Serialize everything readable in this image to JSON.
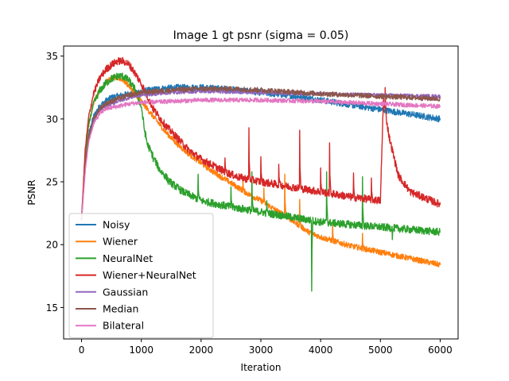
{
  "chart_data": {
    "type": "line",
    "title": "Image 1 gt psnr (sigma = 0.05)",
    "xlabel": "Iteration",
    "ylabel": "PSNR",
    "xlim": [
      -300,
      6300
    ],
    "ylim": [
      12.5,
      35.8
    ],
    "xticks": [
      0,
      1000,
      2000,
      3000,
      4000,
      5000,
      6000
    ],
    "yticks": [
      15,
      20,
      25,
      30,
      35
    ],
    "grid": false,
    "legend_position": "lower-left",
    "series": [
      {
        "name": "Noisy",
        "color": "#1f77b4",
        "points": [
          [
            0,
            22.0
          ],
          [
            60,
            26.5
          ],
          [
            120,
            28.8
          ],
          [
            200,
            30.2
          ],
          [
            300,
            31.0
          ],
          [
            400,
            31.4
          ],
          [
            500,
            31.7
          ],
          [
            700,
            31.9
          ],
          [
            1000,
            32.2
          ],
          [
            1300,
            32.4
          ],
          [
            1600,
            32.5
          ],
          [
            2000,
            32.5
          ],
          [
            2400,
            32.4
          ],
          [
            2800,
            32.2
          ],
          [
            3200,
            32.0
          ],
          [
            3600,
            31.8
          ],
          [
            4000,
            31.5
          ],
          [
            4400,
            31.2
          ],
          [
            4800,
            30.9
          ],
          [
            5200,
            30.6
          ],
          [
            5600,
            30.3
          ],
          [
            6000,
            30.0
          ]
        ],
        "noise": 0.25
      },
      {
        "name": "Wiener",
        "color": "#ff7f0e",
        "points": [
          [
            0,
            22.0
          ],
          [
            60,
            27.0
          ],
          [
            120,
            29.5
          ],
          [
            200,
            31.3
          ],
          [
            300,
            32.3
          ],
          [
            400,
            32.9
          ],
          [
            500,
            33.2
          ],
          [
            600,
            33.3
          ],
          [
            700,
            33.1
          ],
          [
            800,
            32.6
          ],
          [
            900,
            32.0
          ],
          [
            1000,
            31.4
          ],
          [
            1100,
            30.8
          ],
          [
            1200,
            30.2
          ],
          [
            1400,
            29.0
          ],
          [
            1600,
            28.0
          ],
          [
            1800,
            27.2
          ],
          [
            2000,
            26.5
          ],
          [
            2200,
            25.8
          ],
          [
            2400,
            25.2
          ],
          [
            2600,
            24.6
          ],
          [
            2800,
            24.0
          ],
          [
            3000,
            23.5
          ],
          [
            3200,
            22.9
          ],
          [
            3500,
            22.0
          ],
          [
            3800,
            21.0
          ],
          [
            4000,
            20.6
          ],
          [
            4500,
            19.9
          ],
          [
            5000,
            19.4
          ],
          [
            5500,
            18.9
          ],
          [
            6000,
            18.4
          ]
        ],
        "noise": 0.22,
        "spikes": [
          [
            2700,
            25.1
          ],
          [
            3050,
            24.5
          ],
          [
            3400,
            25.6
          ],
          [
            3650,
            23.6
          ],
          [
            4200,
            21.6
          ],
          [
            4700,
            20.9
          ]
        ]
      },
      {
        "name": "NeuralNet",
        "color": "#2ca02c",
        "points": [
          [
            0,
            22.0
          ],
          [
            60,
            27.0
          ],
          [
            120,
            29.6
          ],
          [
            200,
            31.2
          ],
          [
            300,
            32.2
          ],
          [
            400,
            32.8
          ],
          [
            500,
            33.2
          ],
          [
            600,
            33.4
          ],
          [
            700,
            33.4
          ],
          [
            800,
            33.0
          ],
          [
            900,
            32.3
          ],
          [
            1000,
            31.0
          ],
          [
            1050,
            29.2
          ],
          [
            1100,
            28.0
          ],
          [
            1200,
            27.0
          ],
          [
            1300,
            26.0
          ],
          [
            1500,
            24.9
          ],
          [
            1700,
            24.2
          ],
          [
            2000,
            23.5
          ],
          [
            2500,
            23.0
          ],
          [
            3000,
            22.6
          ],
          [
            3500,
            22.2
          ],
          [
            4000,
            21.8
          ],
          [
            4500,
            21.6
          ],
          [
            5000,
            21.4
          ],
          [
            5500,
            21.2
          ],
          [
            6000,
            21.0
          ]
        ],
        "noise": 0.3,
        "spikes": [
          [
            1200,
            26.6
          ],
          [
            1450,
            24.8
          ],
          [
            1950,
            25.6
          ],
          [
            2500,
            24.6
          ],
          [
            2850,
            25.8
          ],
          [
            3100,
            23.5
          ],
          [
            3850,
            16.3
          ],
          [
            4100,
            25.8
          ],
          [
            4700,
            25.4
          ],
          [
            5200,
            20.4
          ]
        ]
      },
      {
        "name": "Wiener+NeuralNet",
        "color": "#d62728",
        "points": [
          [
            0,
            22.0
          ],
          [
            60,
            27.5
          ],
          [
            120,
            30.2
          ],
          [
            200,
            32.0
          ],
          [
            300,
            33.2
          ],
          [
            400,
            33.9
          ],
          [
            500,
            34.3
          ],
          [
            600,
            34.6
          ],
          [
            700,
            34.6
          ],
          [
            800,
            34.3
          ],
          [
            900,
            33.6
          ],
          [
            1000,
            32.8
          ],
          [
            1100,
            31.8
          ],
          [
            1200,
            30.8
          ],
          [
            1400,
            29.5
          ],
          [
            1600,
            28.5
          ],
          [
            1800,
            27.5
          ],
          [
            2000,
            26.8
          ],
          [
            2200,
            26.3
          ],
          [
            2400,
            25.8
          ],
          [
            2600,
            25.4
          ],
          [
            2800,
            25.2
          ],
          [
            3000,
            25.0
          ],
          [
            3500,
            24.6
          ],
          [
            4000,
            24.2
          ],
          [
            4500,
            23.8
          ],
          [
            5000,
            23.5
          ],
          [
            5050,
            31.5
          ],
          [
            5150,
            28.5
          ],
          [
            5300,
            25.5
          ],
          [
            5500,
            24.2
          ],
          [
            6000,
            23.2
          ]
        ],
        "noise": 0.3,
        "spikes": [
          [
            2400,
            26.9
          ],
          [
            2800,
            29.3
          ],
          [
            3000,
            27.0
          ],
          [
            3300,
            26.4
          ],
          [
            3650,
            29.1
          ],
          [
            4000,
            26.1
          ],
          [
            4150,
            28.1
          ],
          [
            4550,
            25.7
          ],
          [
            4850,
            25.3
          ],
          [
            5080,
            32.5
          ]
        ]
      },
      {
        "name": "Gaussian",
        "color": "#9467bd",
        "points": [
          [
            0,
            22.0
          ],
          [
            60,
            26.0
          ],
          [
            120,
            28.4
          ],
          [
            200,
            29.8
          ],
          [
            300,
            30.6
          ],
          [
            400,
            31.0
          ],
          [
            600,
            31.4
          ],
          [
            800,
            31.7
          ],
          [
            1000,
            31.9
          ],
          [
            1500,
            32.1
          ],
          [
            2000,
            32.2
          ],
          [
            3000,
            32.1
          ],
          [
            4000,
            32.0
          ],
          [
            5000,
            31.9
          ],
          [
            6000,
            31.8
          ]
        ],
        "noise": 0.14
      },
      {
        "name": "Median",
        "color": "#8c564b",
        "points": [
          [
            0,
            22.0
          ],
          [
            60,
            26.2
          ],
          [
            120,
            28.6
          ],
          [
            200,
            30.0
          ],
          [
            300,
            30.8
          ],
          [
            400,
            31.2
          ],
          [
            600,
            31.6
          ],
          [
            800,
            31.9
          ],
          [
            1000,
            32.1
          ],
          [
            1500,
            32.3
          ],
          [
            2000,
            32.4
          ],
          [
            2500,
            32.4
          ],
          [
            3000,
            32.3
          ],
          [
            4000,
            32.0
          ],
          [
            5000,
            31.8
          ],
          [
            6000,
            31.6
          ]
        ],
        "noise": 0.2
      },
      {
        "name": "Bilateral",
        "color": "#e377c2",
        "points": [
          [
            0,
            22.0
          ],
          [
            60,
            25.8
          ],
          [
            120,
            28.2
          ],
          [
            200,
            29.6
          ],
          [
            300,
            30.4
          ],
          [
            400,
            30.8
          ],
          [
            600,
            31.0
          ],
          [
            800,
            31.2
          ],
          [
            1000,
            31.3
          ],
          [
            2000,
            31.5
          ],
          [
            3000,
            31.5
          ],
          [
            4000,
            31.4
          ],
          [
            5000,
            31.2
          ],
          [
            6000,
            31.0
          ]
        ],
        "noise": 0.17
      }
    ]
  }
}
